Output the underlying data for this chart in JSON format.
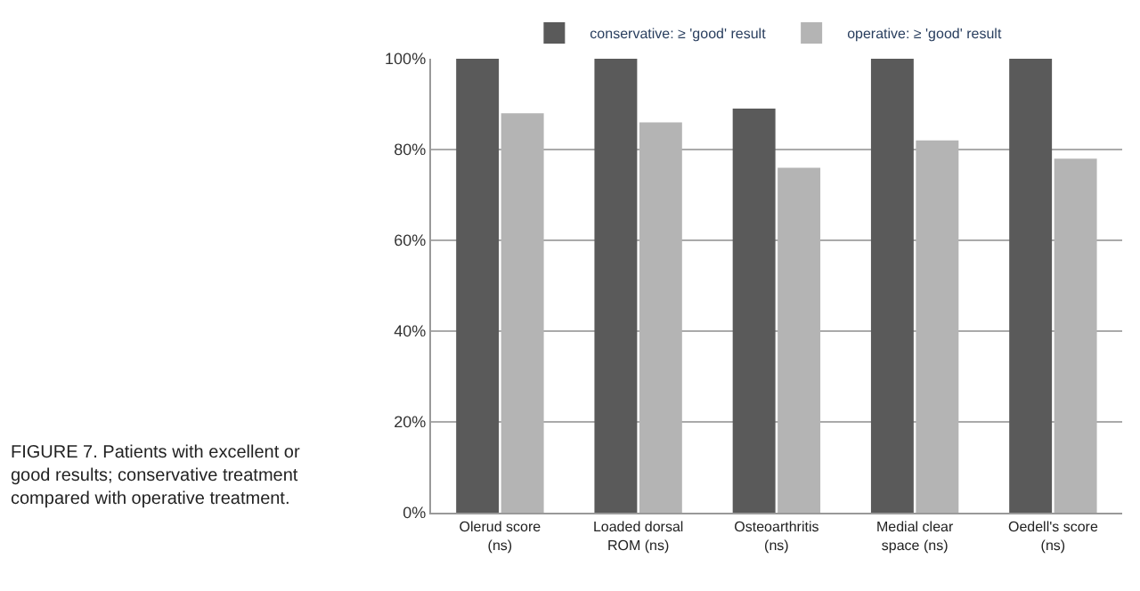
{
  "chart_data": {
    "type": "bar",
    "categories": [
      "Olerud score (ns)",
      "Loaded dorsal ROM (ns)",
      "Osteoarthritis (ns)",
      "Medial clear space (ns)",
      "Oedell's score (ns)"
    ],
    "series": [
      {
        "name": "conservative: ≥ 'good' result",
        "color": "#5a5a5a",
        "values": [
          100,
          100,
          89,
          100,
          100
        ]
      },
      {
        "name": "operative: ≥ 'good' result",
        "color": "#b4b4b4",
        "values": [
          88,
          86,
          76,
          82,
          78
        ]
      }
    ],
    "ylim": [
      0,
      100
    ],
    "yticks": [
      {
        "value": 0,
        "label": "0%"
      },
      {
        "value": 20,
        "label": "20%"
      },
      {
        "value": 40,
        "label": "40%"
      },
      {
        "value": 60,
        "label": "60%"
      },
      {
        "value": 80,
        "label": "80%"
      },
      {
        "value": 100,
        "label": "100%"
      }
    ],
    "grid": "y",
    "legend": "top",
    "annotations": [
      "FIGURE 7. Patients with excellent or good results; conservative treatment compared with operative treatment."
    ]
  }
}
